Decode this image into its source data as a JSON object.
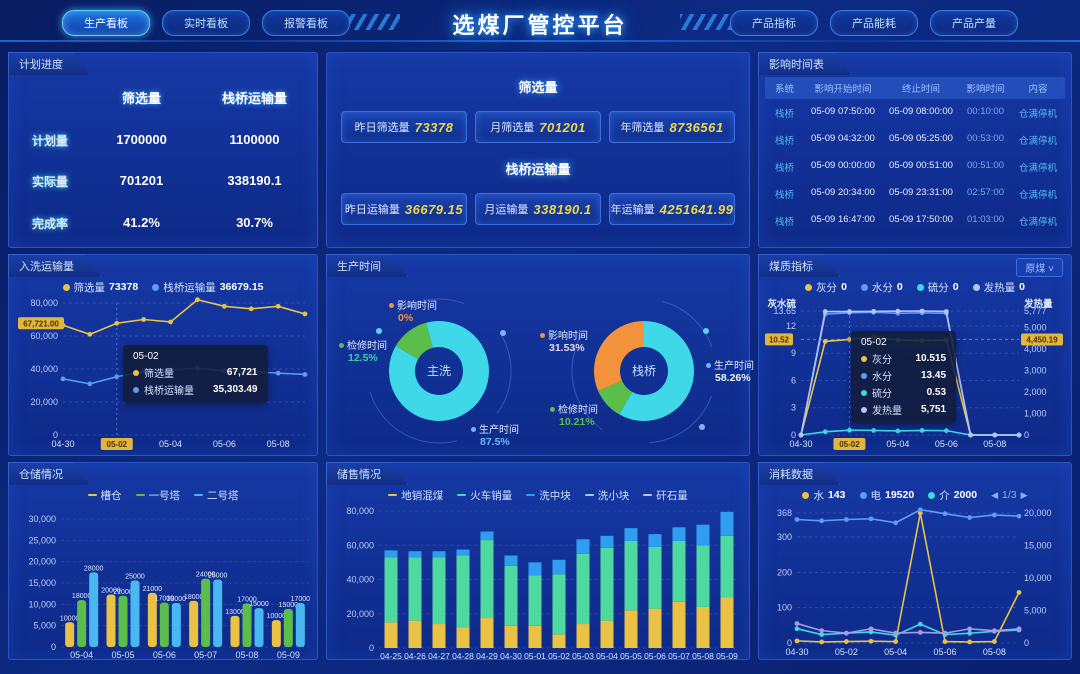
{
  "header": {
    "title": "选煤厂管控平台",
    "left_tabs": [
      {
        "key": "production-board",
        "label": "生产看板",
        "active": true
      },
      {
        "key": "realtime-board",
        "label": "实时看板",
        "active": false
      },
      {
        "key": "alarm-board",
        "label": "报警看板",
        "active": false
      }
    ],
    "right_tabs": [
      {
        "key": "product-index",
        "label": "产品指标",
        "active": false
      },
      {
        "key": "product-energy",
        "label": "产品能耗",
        "active": false
      },
      {
        "key": "product-output",
        "label": "产品产量",
        "active": false
      }
    ]
  },
  "plan_progress": {
    "title": "计划进度",
    "columns": [
      "筛选量",
      "栈桥运输量"
    ],
    "rows": [
      {
        "label": "计划量",
        "values": [
          "1700000",
          "1100000"
        ]
      },
      {
        "label": "实际量",
        "values": [
          "701201",
          "338190.1"
        ]
      },
      {
        "label": "完成率",
        "values": [
          "41.2%",
          "30.7%"
        ]
      }
    ]
  },
  "volume_stats": {
    "sections": [
      {
        "title": "筛选量",
        "items": [
          {
            "label": "昨日筛选量",
            "value": "73378"
          },
          {
            "label": "月筛选量",
            "value": "701201"
          },
          {
            "label": "年筛选量",
            "value": "8736561"
          }
        ]
      },
      {
        "title": "栈桥运输量",
        "items": [
          {
            "label": "昨日运输量",
            "value": "36679.15"
          },
          {
            "label": "月运输量",
            "value": "338190.1"
          },
          {
            "label": "年运输量",
            "value": "4251641.99"
          }
        ]
      }
    ]
  },
  "impact_table": {
    "title": "影响时间表",
    "headers": [
      "系统",
      "影响开始时间",
      "终止时间",
      "影响时间",
      "内容"
    ],
    "rows": [
      [
        "栈桥",
        "05-09 07:50:00",
        "05-09 08:00:00",
        "00:10:00",
        "仓满停机"
      ],
      [
        "栈桥",
        "05-09 04:32:00",
        "05-09 05:25:00",
        "00:53:00",
        "仓满停机"
      ],
      [
        "栈桥",
        "05-09 00:00:00",
        "05-09 00:51:00",
        "00:51:00",
        "仓满停机"
      ],
      [
        "栈桥",
        "05-09 20:34:00",
        "05-09 23:31:00",
        "02:57:00",
        "仓满停机"
      ],
      [
        "栈桥",
        "05-09 16:47:00",
        "05-09 17:50:00",
        "01:03:00",
        "仓满停机"
      ]
    ]
  },
  "chart_data": [
    {
      "id": "washing_transport",
      "type": "line",
      "title": "入洗运输量",
      "x": [
        "04-30",
        "05-01",
        "05-02",
        "05-03",
        "05-04",
        "05-05",
        "05-06",
        "05-07",
        "05-08",
        "05-09"
      ],
      "x_shown": [
        "04-30",
        "05-02",
        "05-04",
        "05-06",
        "05-08"
      ],
      "highlighted_x": "05-02",
      "yticks": [
        "80,000",
        "60,000",
        "40,000",
        "20,000",
        "0"
      ],
      "ylim": [
        0,
        80000
      ],
      "y_marker": "67,721.00",
      "legend": [
        {
          "name": "筛选量",
          "value": "73378",
          "color": "#e9c245"
        },
        {
          "name": "栈桥运输量",
          "value": "36679.15",
          "color": "#5b9cf5"
        }
      ],
      "series": [
        {
          "name": "筛选量",
          "color": "#e9c245",
          "values": [
            66500,
            61000,
            67721,
            70000,
            68500,
            82000,
            78000,
            76500,
            78000,
            73378
          ]
        },
        {
          "name": "栈桥运输量",
          "color": "#5b9cf5",
          "values": [
            34000,
            31000,
            35303,
            38500,
            39500,
            40500,
            39000,
            38500,
            37500,
            36679
          ]
        }
      ],
      "tooltip": {
        "title": "05-02",
        "rows": [
          {
            "name": "筛选量",
            "value": "67,721",
            "color": "#e9c245"
          },
          {
            "name": "栈桥运输量",
            "value": "35,303.49",
            "color": "#5b9cf5"
          }
        ]
      }
    },
    {
      "id": "production_time",
      "type": "donut",
      "title": "生产时间",
      "donuts": [
        {
          "center": "主洗",
          "slices": [
            {
              "name": "生产时间",
              "pct": 87.5,
              "color": "#3ed8e8"
            },
            {
              "name": "检修时间",
              "pct": 12.5,
              "color": "#5cbe4a"
            },
            {
              "name": "影响时间",
              "pct": 0,
              "color": "#f2923c"
            }
          ],
          "labels": [
            {
              "name": "影响时间",
              "pct": "0%",
              "color": "#f2923c"
            },
            {
              "name": "检修时间",
              "pct": "12.5%",
              "color": "#3ec9a8"
            },
            {
              "name": "生产时间",
              "pct": "87.5%",
              "color": "#6fb6ff"
            }
          ]
        },
        {
          "center": "栈桥",
          "slices": [
            {
              "name": "生产时间",
              "pct": 58.26,
              "color": "#3ed8e8"
            },
            {
              "name": "检修时间",
              "pct": 10.21,
              "color": "#5cbe4a"
            },
            {
              "name": "影响时间",
              "pct": 31.53,
              "color": "#f2923c"
            }
          ],
          "labels": [
            {
              "name": "影响时间",
              "pct": "31.53%",
              "color": "#e8d9ef"
            },
            {
              "name": "检修时间",
              "pct": "10.21%",
              "color": "#5cbe4a"
            },
            {
              "name": "生产时间",
              "pct": "58.26%",
              "color": "#e8f4ff"
            }
          ]
        }
      ]
    },
    {
      "id": "coal_quality",
      "type": "line",
      "title": "煤质指标",
      "dropdown": "原煤",
      "x": [
        "04-30",
        "05-01",
        "05-02",
        "05-03",
        "05-04",
        "05-05",
        "05-06",
        "05-07",
        "05-08",
        "05-09"
      ],
      "x_shown": [
        "04-30",
        "05-02",
        "05-04",
        "05-06",
        "05-08"
      ],
      "highlighted_x": "05-02",
      "axis_label_left": "灰水硫",
      "axis_label_right": "发热量",
      "yticks_left": [
        "13.65",
        "12",
        "9",
        "6",
        "3",
        "0"
      ],
      "yticks_right": [
        "5,777",
        "5,000",
        "4,000",
        "3,000",
        "2,000",
        "1,000",
        "0"
      ],
      "left_marker": "10.52",
      "right_marker": "4,450.19",
      "legend": [
        {
          "name": "灰分",
          "value": "0",
          "color": "#e9c245"
        },
        {
          "name": "水分",
          "value": "0",
          "color": "#5b9cf5"
        },
        {
          "name": "硫分",
          "value": "0",
          "color": "#3ed8e8"
        },
        {
          "name": "发热量",
          "value": "0",
          "color": "#b9c4f0"
        }
      ],
      "series": [
        {
          "name": "灰分",
          "axis": "left",
          "color": "#e9c245",
          "values": [
            0,
            10.3,
            10.515,
            10.8,
            10.45,
            10.4,
            10.45,
            0,
            0,
            0
          ]
        },
        {
          "name": "水分",
          "axis": "left",
          "color": "#5b9cf5",
          "values": [
            0,
            13.3,
            13.45,
            13.5,
            13.4,
            13.45,
            13.4,
            0,
            0,
            0
          ]
        },
        {
          "name": "硫分",
          "axis": "left",
          "color": "#3ed8e8",
          "values": [
            0,
            0.35,
            0.53,
            0.5,
            0.45,
            0.5,
            0.48,
            0,
            0,
            0
          ]
        },
        {
          "name": "发热量",
          "axis": "right",
          "color": "#b9c4f0",
          "values": [
            0,
            5751,
            5751,
            5760,
            5770,
            5777,
            5755,
            0,
            0,
            0
          ]
        }
      ],
      "tooltip": {
        "title": "05-02",
        "rows": [
          {
            "name": "灰分",
            "value": "10.515",
            "color": "#e9c245"
          },
          {
            "name": "水分",
            "value": "13.45",
            "color": "#5b9cf5"
          },
          {
            "name": "硫分",
            "value": "0.53",
            "color": "#3ed8e8"
          },
          {
            "name": "发热量",
            "value": "5,751",
            "color": "#b9c4f0"
          }
        ]
      }
    },
    {
      "id": "storage",
      "type": "bar",
      "title": "仓储情况",
      "categories": [
        "05-04",
        "05-05",
        "05-06",
        "05-07",
        "05-08",
        "05-09"
      ],
      "yticks": [
        "30,000",
        "25,000",
        "20,000",
        "15,000",
        "10,000",
        "5,000",
        "0"
      ],
      "ylim": [
        0,
        30000
      ],
      "legend": [
        {
          "name": "槽仓",
          "color": "#e9c245"
        },
        {
          "name": "一号塔",
          "color": "#5cbe4a"
        },
        {
          "name": "二号塔",
          "color": "#49b8f0"
        }
      ],
      "series": [
        {
          "name": "槽仓",
          "color": "#e9c245",
          "labels": [
            "10000",
            "20000",
            "21000",
            "18000",
            "13000",
            "10000"
          ],
          "heights": [
            5800,
            12300,
            12700,
            10800,
            7300,
            6300
          ]
        },
        {
          "name": "一号塔",
          "color": "#5cbe4a",
          "labels": [
            "18000",
            "21000",
            "17000",
            "24000",
            "17000",
            "15000"
          ],
          "heights": [
            11000,
            12000,
            10400,
            16000,
            10200,
            8900
          ]
        },
        {
          "name": "二号塔",
          "color": "#49b8f0",
          "labels": [
            "28000",
            "25000",
            "18000",
            "25000",
            "15000",
            "17000"
          ],
          "heights": [
            17500,
            15600,
            10300,
            15800,
            9100,
            10300
          ]
        }
      ]
    },
    {
      "id": "sales",
      "type": "stacked-bar",
      "title": "储售情况",
      "categories": [
        "04-25",
        "04-26",
        "04-27",
        "04-28",
        "04-29",
        "04-30",
        "05-01",
        "05-02",
        "05-03",
        "05-04",
        "05-05",
        "05-06",
        "05-07",
        "05-08",
        "05-09"
      ],
      "yticks": [
        "80,000",
        "60,000",
        "40,000",
        "20,000",
        "0"
      ],
      "ylim": [
        0,
        80000
      ],
      "legend": [
        {
          "name": "地销混煤",
          "color": "#e9c245"
        },
        {
          "name": "火车销量",
          "color": "#4ed9a0"
        },
        {
          "name": "洗中块",
          "color": "#2f9df0"
        },
        {
          "name": "洗小块",
          "color": "#8ad4f0"
        },
        {
          "name": "矸石量",
          "color": "#b9c4f0"
        }
      ],
      "series": [
        {
          "name": "地销混煤",
          "color": "#e9c245",
          "values": [
            15000,
            16000,
            14000,
            12000,
            17500,
            13000,
            13000,
            8000,
            14000,
            16000,
            22000,
            23000,
            27000,
            24000,
            29500
          ]
        },
        {
          "name": "火车销量",
          "color": "#4ed9a0",
          "values": [
            38000,
            37000,
            39000,
            42000,
            45500,
            35000,
            29500,
            35000,
            41000,
            42500,
            40500,
            36000,
            35500,
            36000,
            36000
          ]
        },
        {
          "name": "洗中块",
          "color": "#2f9df0",
          "values": [
            4000,
            3500,
            3500,
            3500,
            5000,
            6000,
            7500,
            8500,
            8500,
            7000,
            7500,
            7500,
            8000,
            12000,
            14000
          ]
        }
      ]
    },
    {
      "id": "consumption",
      "type": "line",
      "title": "消耗数据",
      "x": [
        "04-30",
        "05-01",
        "05-02",
        "05-03",
        "05-04",
        "05-05",
        "05-06",
        "05-07",
        "05-08",
        "05-09"
      ],
      "x_shown": [
        "04-30",
        "05-02",
        "05-04",
        "05-06",
        "05-08"
      ],
      "yticks_left": [
        "368",
        "300",
        "200",
        "100",
        "0"
      ],
      "yticks_right": [
        "20,000",
        "15,000",
        "10,000",
        "5,000",
        "0"
      ],
      "pager": "1/3",
      "legend": [
        {
          "name": "水",
          "value": "143",
          "color": "#e9c245"
        },
        {
          "name": "电",
          "value": "19520",
          "color": "#5b9cf5"
        },
        {
          "name": "介",
          "value": "2000",
          "color": "#3ed8e8"
        }
      ],
      "series": [
        {
          "name": "水",
          "axis": "left",
          "color": "#e9c245",
          "values": [
            6,
            3,
            4,
            5,
            4,
            368,
            4,
            3,
            4,
            143
          ]
        },
        {
          "name": "电",
          "axis": "right",
          "color": "#5b9cf5",
          "values": [
            19000,
            18800,
            19000,
            19100,
            18500,
            20500,
            19900,
            19300,
            19700,
            19520
          ]
        },
        {
          "name": "介",
          "axis": "right",
          "color": "#3ed8e8",
          "values": [
            2200,
            1300,
            1500,
            1700,
            1200,
            2900,
            1300,
            1500,
            1800,
            2000
          ]
        },
        {
          "name": "",
          "axis": "left",
          "color": "#a89ae0",
          "values": [
            55,
            35,
            28,
            40,
            28,
            30,
            28,
            40,
            35,
            40
          ]
        }
      ]
    }
  ]
}
